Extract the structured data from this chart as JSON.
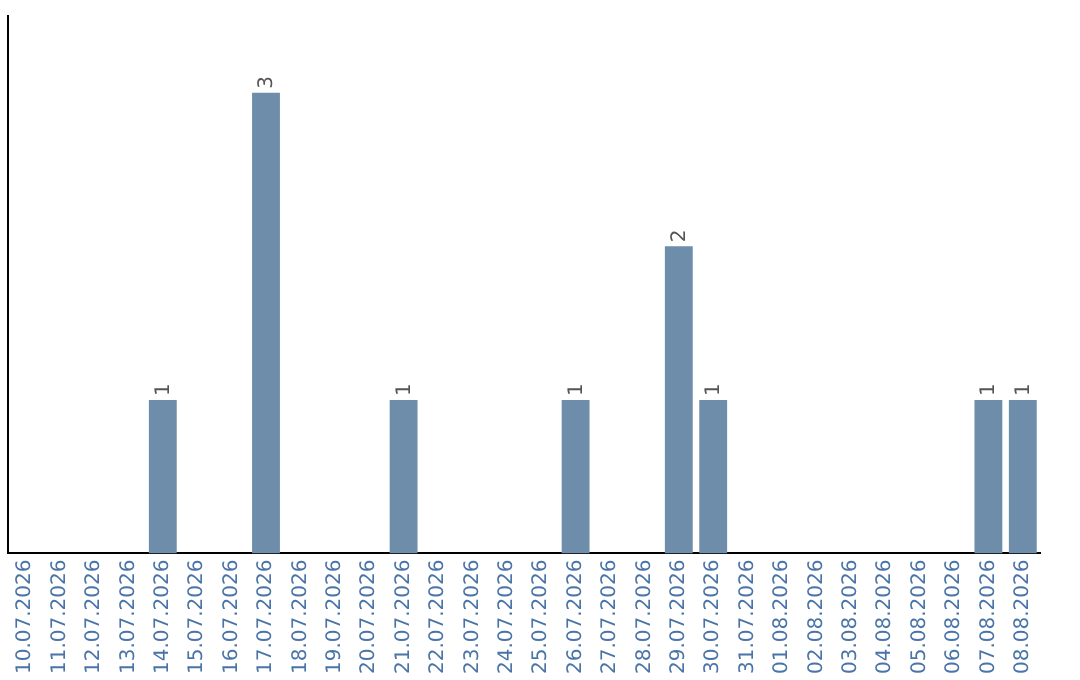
{
  "chart_data": {
    "type": "bar",
    "categories": [
      "10.07.2026",
      "11.07.2026",
      "12.07.2026",
      "13.07.2026",
      "14.07.2026",
      "15.07.2026",
      "16.07.2026",
      "17.07.2026",
      "18.07.2026",
      "19.07.2026",
      "20.07.2026",
      "21.07.2026",
      "22.07.2026",
      "23.07.2026",
      "24.07.2026",
      "25.07.2026",
      "26.07.2026",
      "27.07.2026",
      "28.07.2026",
      "29.07.2026",
      "30.07.2026",
      "31.07.2026",
      "01.08.2026",
      "02.08.2026",
      "03.08.2026",
      "04.08.2026",
      "05.08.2026",
      "06.08.2026",
      "07.08.2026",
      "08.08.2026"
    ],
    "values": [
      0,
      0,
      0,
      0,
      1,
      0,
      0,
      3,
      0,
      0,
      0,
      1,
      0,
      0,
      0,
      0,
      1,
      0,
      0,
      2,
      1,
      0,
      0,
      0,
      0,
      0,
      0,
      0,
      1,
      1
    ],
    "value_labels": [
      null,
      null,
      null,
      null,
      "1",
      null,
      null,
      "3",
      null,
      null,
      null,
      "1",
      null,
      null,
      null,
      null,
      "1",
      null,
      null,
      "2",
      "1",
      null,
      null,
      null,
      null,
      null,
      null,
      null,
      "1",
      "1"
    ],
    "color": "#6d8dab",
    "grid": false,
    "legend": false,
    "tick_labels": "x"
  }
}
